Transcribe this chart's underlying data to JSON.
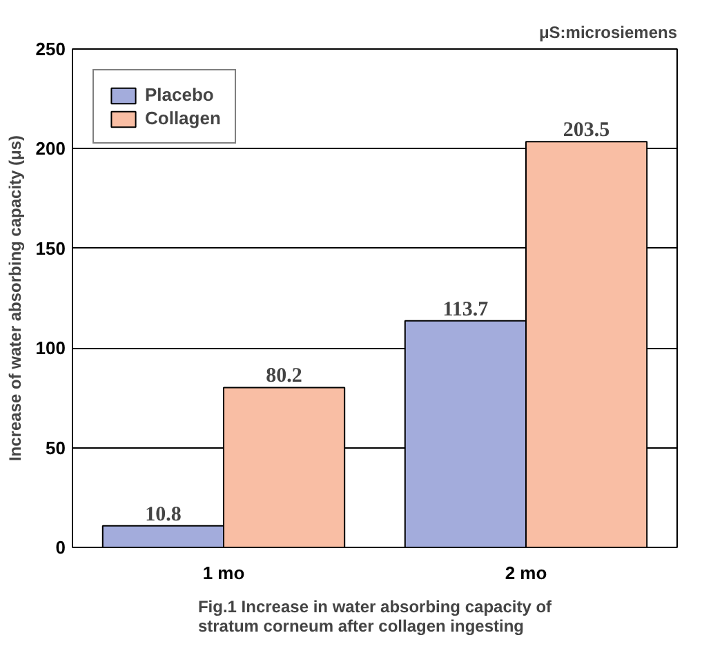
{
  "chart_data": {
    "type": "bar",
    "ylabel": "Increase of water absorbing capacity (μs)",
    "categories": [
      "1 mo",
      "2 mo"
    ],
    "series": [
      {
        "name": "Placebo",
        "color": "#a3acdc",
        "values": [
          10.8,
          113.7
        ]
      },
      {
        "name": "Collagen",
        "color": "#f9bea4",
        "values": [
          80.2,
          203.5
        ]
      }
    ],
    "ylim": [
      0,
      250
    ],
    "yticks": [
      0,
      50,
      100,
      150,
      200,
      250
    ],
    "grid": "y",
    "legend": "top left",
    "data_labels": true,
    "annotations": [
      "μS:microsiemens",
      "Fig.1 Increase in water absorbing capacity of\nstratum corneum after collagen ingesting"
    ]
  }
}
